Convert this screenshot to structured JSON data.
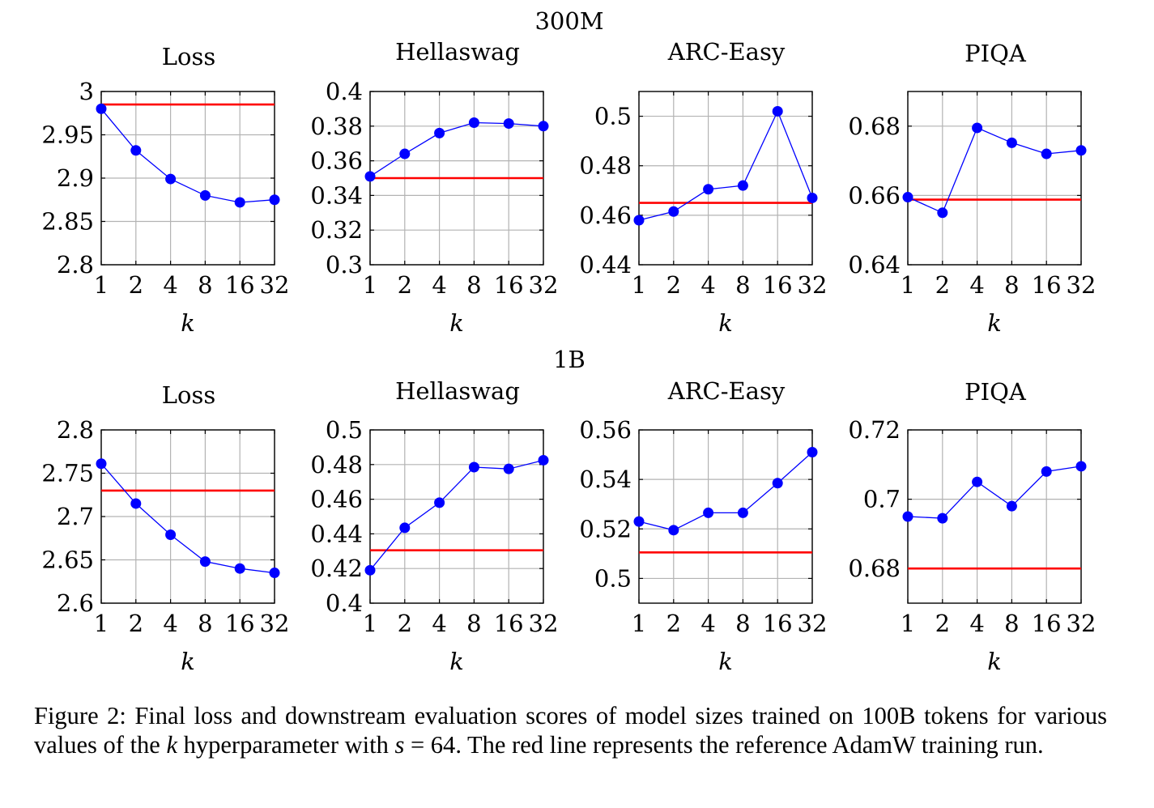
{
  "figure": {
    "rows": [
      {
        "title": "300M",
        "panels": [
          {
            "title": "Loss",
            "yticks": [
              "2.8",
              "2.85",
              "2.9",
              "2.95",
              "3"
            ],
            "xticks": [
              "1",
              "2",
              "4",
              "8",
              "16",
              "32"
            ],
            "xlabel": "k"
          },
          {
            "title": "Hellaswag",
            "yticks": [
              "0.3",
              "0.32",
              "0.34",
              "0.36",
              "0.38",
              "0.4"
            ],
            "xticks": [
              "1",
              "2",
              "4",
              "8",
              "16",
              "32"
            ],
            "xlabel": "k"
          },
          {
            "title": "ARC-Easy",
            "yticks": [
              "0.44",
              "0.46",
              "0.48",
              "0.5"
            ],
            "xticks": [
              "1",
              "2",
              "4",
              "8",
              "16",
              "32"
            ],
            "xlabel": "k"
          },
          {
            "title": "PIQA",
            "yticks": [
              "0.64",
              "0.66",
              "0.68"
            ],
            "xticks": [
              "1",
              "2",
              "4",
              "8",
              "16",
              "32"
            ],
            "xlabel": "k"
          }
        ]
      },
      {
        "title": "1B",
        "panels": [
          {
            "title": "Loss",
            "yticks": [
              "2.6",
              "2.65",
              "2.7",
              "2.75",
              "2.8"
            ],
            "xticks": [
              "1",
              "2",
              "4",
              "8",
              "16",
              "32"
            ],
            "xlabel": "k"
          },
          {
            "title": "Hellaswag",
            "yticks": [
              "0.4",
              "0.42",
              "0.44",
              "0.46",
              "0.48",
              "0.5"
            ],
            "xticks": [
              "1",
              "2",
              "4",
              "8",
              "16",
              "32"
            ],
            "xlabel": "k"
          },
          {
            "title": "ARC-Easy",
            "yticks": [
              "0.5",
              "0.52",
              "0.54",
              "0.56"
            ],
            "xticks": [
              "1",
              "2",
              "4",
              "8",
              "16",
              "32"
            ],
            "xlabel": "k"
          },
          {
            "title": "PIQA",
            "yticks": [
              "0.68",
              "0.7",
              "0.72"
            ],
            "xticks": [
              "1",
              "2",
              "4",
              "8",
              "16",
              "32"
            ],
            "xlabel": "k"
          }
        ]
      }
    ],
    "colors": {
      "series": "#0000ff",
      "reference": "#ff0000",
      "grid": "#b3b3b3",
      "axis": "#000000"
    }
  },
  "chart_data": [
    {
      "type": "line",
      "group": "300M",
      "title": "Loss",
      "xlabel": "k",
      "ylabel": "",
      "x": [
        1,
        2,
        4,
        8,
        16,
        32
      ],
      "xscale": "log2",
      "series": [
        {
          "values": [
            2.98,
            2.932,
            2.899,
            2.88,
            2.872,
            2.875
          ]
        }
      ],
      "reference_line": 2.985,
      "ylim": [
        2.8,
        3.0
      ],
      "grid": true
    },
    {
      "type": "line",
      "group": "300M",
      "title": "Hellaswag",
      "xlabel": "k",
      "ylabel": "",
      "x": [
        1,
        2,
        4,
        8,
        16,
        32
      ],
      "xscale": "log2",
      "series": [
        {
          "values": [
            0.351,
            0.364,
            0.376,
            0.382,
            0.3815,
            0.38
          ]
        }
      ],
      "reference_line": 0.35,
      "ylim": [
        0.3,
        0.4
      ],
      "grid": true
    },
    {
      "type": "line",
      "group": "300M",
      "title": "ARC-Easy",
      "xlabel": "k",
      "ylabel": "",
      "x": [
        1,
        2,
        4,
        8,
        16,
        32
      ],
      "xscale": "log2",
      "series": [
        {
          "values": [
            0.458,
            0.4615,
            0.4705,
            0.472,
            0.502,
            0.467
          ]
        }
      ],
      "reference_line": 0.465,
      "ylim": [
        0.44,
        0.51
      ],
      "grid": true
    },
    {
      "type": "line",
      "group": "300M",
      "title": "PIQA",
      "xlabel": "k",
      "ylabel": "",
      "x": [
        1,
        2,
        4,
        8,
        16,
        32
      ],
      "xscale": "log2",
      "series": [
        {
          "values": [
            0.6595,
            0.655,
            0.6795,
            0.6752,
            0.672,
            0.673
          ]
        }
      ],
      "reference_line": 0.6588,
      "ylim": [
        0.64,
        0.69
      ],
      "grid": true
    },
    {
      "type": "line",
      "group": "1B",
      "title": "Loss",
      "xlabel": "k",
      "ylabel": "",
      "x": [
        1,
        2,
        4,
        8,
        16,
        32
      ],
      "xscale": "log2",
      "series": [
        {
          "values": [
            2.761,
            2.715,
            2.679,
            2.648,
            2.64,
            2.635
          ]
        }
      ],
      "reference_line": 2.73,
      "ylim": [
        2.6,
        2.8
      ],
      "grid": true
    },
    {
      "type": "line",
      "group": "1B",
      "title": "Hellaswag",
      "xlabel": "k",
      "ylabel": "",
      "x": [
        1,
        2,
        4,
        8,
        16,
        32
      ],
      "xscale": "log2",
      "series": [
        {
          "values": [
            0.419,
            0.4435,
            0.458,
            0.4785,
            0.4775,
            0.4825
          ]
        }
      ],
      "reference_line": 0.4305,
      "ylim": [
        0.4,
        0.5
      ],
      "grid": true
    },
    {
      "type": "line",
      "group": "1B",
      "title": "ARC-Easy",
      "xlabel": "k",
      "ylabel": "",
      "x": [
        1,
        2,
        4,
        8,
        16,
        32
      ],
      "xscale": "log2",
      "series": [
        {
          "values": [
            0.523,
            0.5195,
            0.5265,
            0.5265,
            0.5385,
            0.551
          ]
        }
      ],
      "reference_line": 0.5105,
      "ylim": [
        0.49,
        0.56
      ],
      "grid": true
    },
    {
      "type": "line",
      "group": "1B",
      "title": "PIQA",
      "xlabel": "k",
      "ylabel": "",
      "x": [
        1,
        2,
        4,
        8,
        16,
        32
      ],
      "xscale": "log2",
      "series": [
        {
          "values": [
            0.695,
            0.6945,
            0.705,
            0.698,
            0.708,
            0.7095
          ]
        }
      ],
      "reference_line": 0.68,
      "ylim": [
        0.67,
        0.72
      ],
      "grid": true
    }
  ],
  "caption": {
    "part1": "Figure 2: Final loss and downstream evaluation scores of model sizes trained on 100B tokens for various values of the ",
    "k": "k",
    "part2": " hyperparameter with ",
    "s_eq": "s",
    "eq": " = 64",
    "part3": ". The red line represents the reference AdamW training run."
  }
}
